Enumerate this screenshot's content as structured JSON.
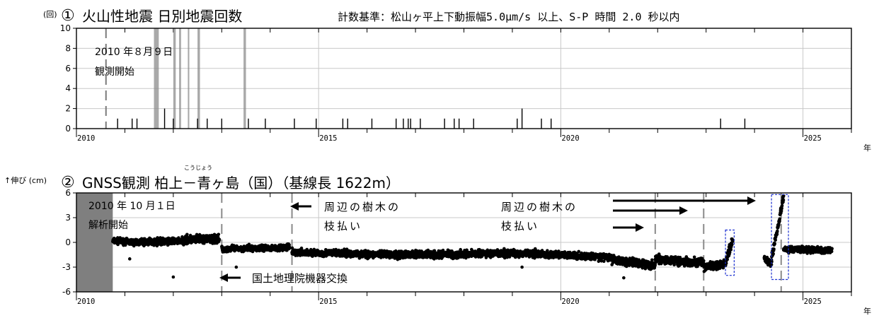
{
  "year_suffix": "年",
  "chart_data": [
    {
      "type": "bar",
      "panel_number": "①",
      "title": "火山性地震 日別地震回数",
      "criteria": "計数基準：松山ヶ平上下動振幅5.0μm/s 以上、S-P 時間 2.0 秒以内",
      "ylabel": "(回)",
      "ylim": [
        0,
        10
      ],
      "yticks": [
        0,
        2,
        4,
        6,
        8,
        10
      ],
      "xlim": [
        2010.0,
        2026.0
      ],
      "xticks_labeled": [
        2010,
        2015,
        2020,
        2025
      ],
      "grid": true,
      "start_note": [
        "2010 年８月９日",
        "観測開始"
      ],
      "start_date": 2010.61,
      "counts": [
        {
          "x": 2010.85,
          "y": 1
        },
        {
          "x": 2011.15,
          "y": 1
        },
        {
          "x": 2011.25,
          "y": 1
        },
        {
          "x": 2011.82,
          "y": 2
        },
        {
          "x": 2012.0,
          "y": 1
        },
        {
          "x": 2012.5,
          "y": 1
        },
        {
          "x": 2012.7,
          "y": 1
        },
        {
          "x": 2013.0,
          "y": 1
        },
        {
          "x": 2013.55,
          "y": 1
        },
        {
          "x": 2013.9,
          "y": 1
        },
        {
          "x": 2014.5,
          "y": 1
        },
        {
          "x": 2014.95,
          "y": 1
        },
        {
          "x": 2015.5,
          "y": 1
        },
        {
          "x": 2015.6,
          "y": 1
        },
        {
          "x": 2016.1,
          "y": 1
        },
        {
          "x": 2016.6,
          "y": 1
        },
        {
          "x": 2016.75,
          "y": 1
        },
        {
          "x": 2016.85,
          "y": 1
        },
        {
          "x": 2016.9,
          "y": 1
        },
        {
          "x": 2017.1,
          "y": 1
        },
        {
          "x": 2017.6,
          "y": 1
        },
        {
          "x": 2017.8,
          "y": 1
        },
        {
          "x": 2017.9,
          "y": 1
        },
        {
          "x": 2018.2,
          "y": 1
        },
        {
          "x": 2019.1,
          "y": 1
        },
        {
          "x": 2019.2,
          "y": 2
        },
        {
          "x": 2019.6,
          "y": 1
        },
        {
          "x": 2019.8,
          "y": 1
        },
        {
          "x": 2023.3,
          "y": 1
        },
        {
          "x": 2023.8,
          "y": 1
        }
      ],
      "gaps": [
        {
          "from": 2011.6,
          "to": 2011.7
        },
        {
          "from": 2012.0,
          "to": 2012.05
        },
        {
          "from": 2012.12,
          "to": 2012.16
        },
        {
          "from": 2012.3,
          "to": 2012.33
        },
        {
          "from": 2012.5,
          "to": 2012.55
        },
        {
          "from": 2013.45,
          "to": 2013.5
        }
      ]
    },
    {
      "type": "scatter",
      "panel_number": "②",
      "title": "GNSS観測 柏上－青ヶ島（国）（基線長 1622m）",
      "title_ruby": "こうじょう",
      "ylabel": "↑伸び (cm)",
      "ylim": [
        -6,
        6
      ],
      "yticks": [
        -6,
        -3,
        0,
        3,
        6
      ],
      "xlim": [
        2010.0,
        2026.0
      ],
      "xticks_labeled": [
        2010,
        2015,
        2020,
        2025
      ],
      "grid": true,
      "no_data_until": 2010.75,
      "start_note": [
        "2010 年 10 月１日",
        "解析開始"
      ],
      "annotations": {
        "trees_1": [
          "周辺の樹木の",
          "枝払い"
        ],
        "trees_2": [
          "周辺の樹木の",
          "枝払い"
        ],
        "equipment": "国土地理院機器交換"
      },
      "events": [
        2013.0,
        2014.45,
        2021.95,
        2022.95,
        2024.55
      ],
      "highlight_boxes": [
        {
          "x0": 2023.4,
          "x1": 2023.58,
          "y0": -4.0,
          "y1": 1.5
        },
        {
          "x0": 2024.35,
          "x1": 2024.7,
          "y0": -4.5,
          "y1": 5.8
        }
      ],
      "segments": [
        {
          "start": 2010.75,
          "end": 2011.2,
          "from": 0.2,
          "to": 0.0,
          "noise": 0.35
        },
        {
          "start": 2011.2,
          "end": 2012.2,
          "from": 0.0,
          "to": 0.2,
          "noise": 0.4
        },
        {
          "start": 2012.2,
          "end": 2012.95,
          "from": 0.3,
          "to": 0.4,
          "noise": 0.5
        },
        {
          "start": 2013.0,
          "end": 2014.4,
          "from": -0.8,
          "to": -0.6,
          "noise": 0.35
        },
        {
          "start": 2014.45,
          "end": 2016.5,
          "from": -1.2,
          "to": -1.5,
          "noise": 0.4
        },
        {
          "start": 2016.5,
          "end": 2019.5,
          "from": -1.5,
          "to": -1.3,
          "noise": 0.45
        },
        {
          "start": 2019.5,
          "end": 2021.0,
          "from": -1.4,
          "to": -1.8,
          "noise": 0.4
        },
        {
          "start": 2021.0,
          "end": 2021.95,
          "from": -2.0,
          "to": -2.8,
          "noise": 0.5
        },
        {
          "start": 2021.95,
          "end": 2022.95,
          "from": -2.0,
          "to": -2.5,
          "noise": 0.5
        },
        {
          "start": 2022.95,
          "end": 2023.4,
          "from": -3.0,
          "to": -2.6,
          "noise": 0.5
        },
        {
          "start": 2023.4,
          "end": 2023.55,
          "from": -2.5,
          "to": 0.5,
          "noise": 0.6
        },
        {
          "start": 2024.2,
          "end": 2024.35,
          "from": -2.0,
          "to": -2.5,
          "noise": 0.4
        },
        {
          "start": 2024.35,
          "end": 2024.6,
          "from": -2.0,
          "to": 5.5,
          "noise": 0.5
        },
        {
          "start": 2024.6,
          "end": 2025.6,
          "from": -0.8,
          "to": -1.0,
          "noise": 0.35
        }
      ],
      "outliers": [
        {
          "x": 2011.1,
          "y": -2.0
        },
        {
          "x": 2012.0,
          "y": -4.2
        },
        {
          "x": 2013.3,
          "y": -3.0
        },
        {
          "x": 2019.2,
          "y": -3.0
        },
        {
          "x": 2021.3,
          "y": -4.3
        }
      ]
    }
  ]
}
